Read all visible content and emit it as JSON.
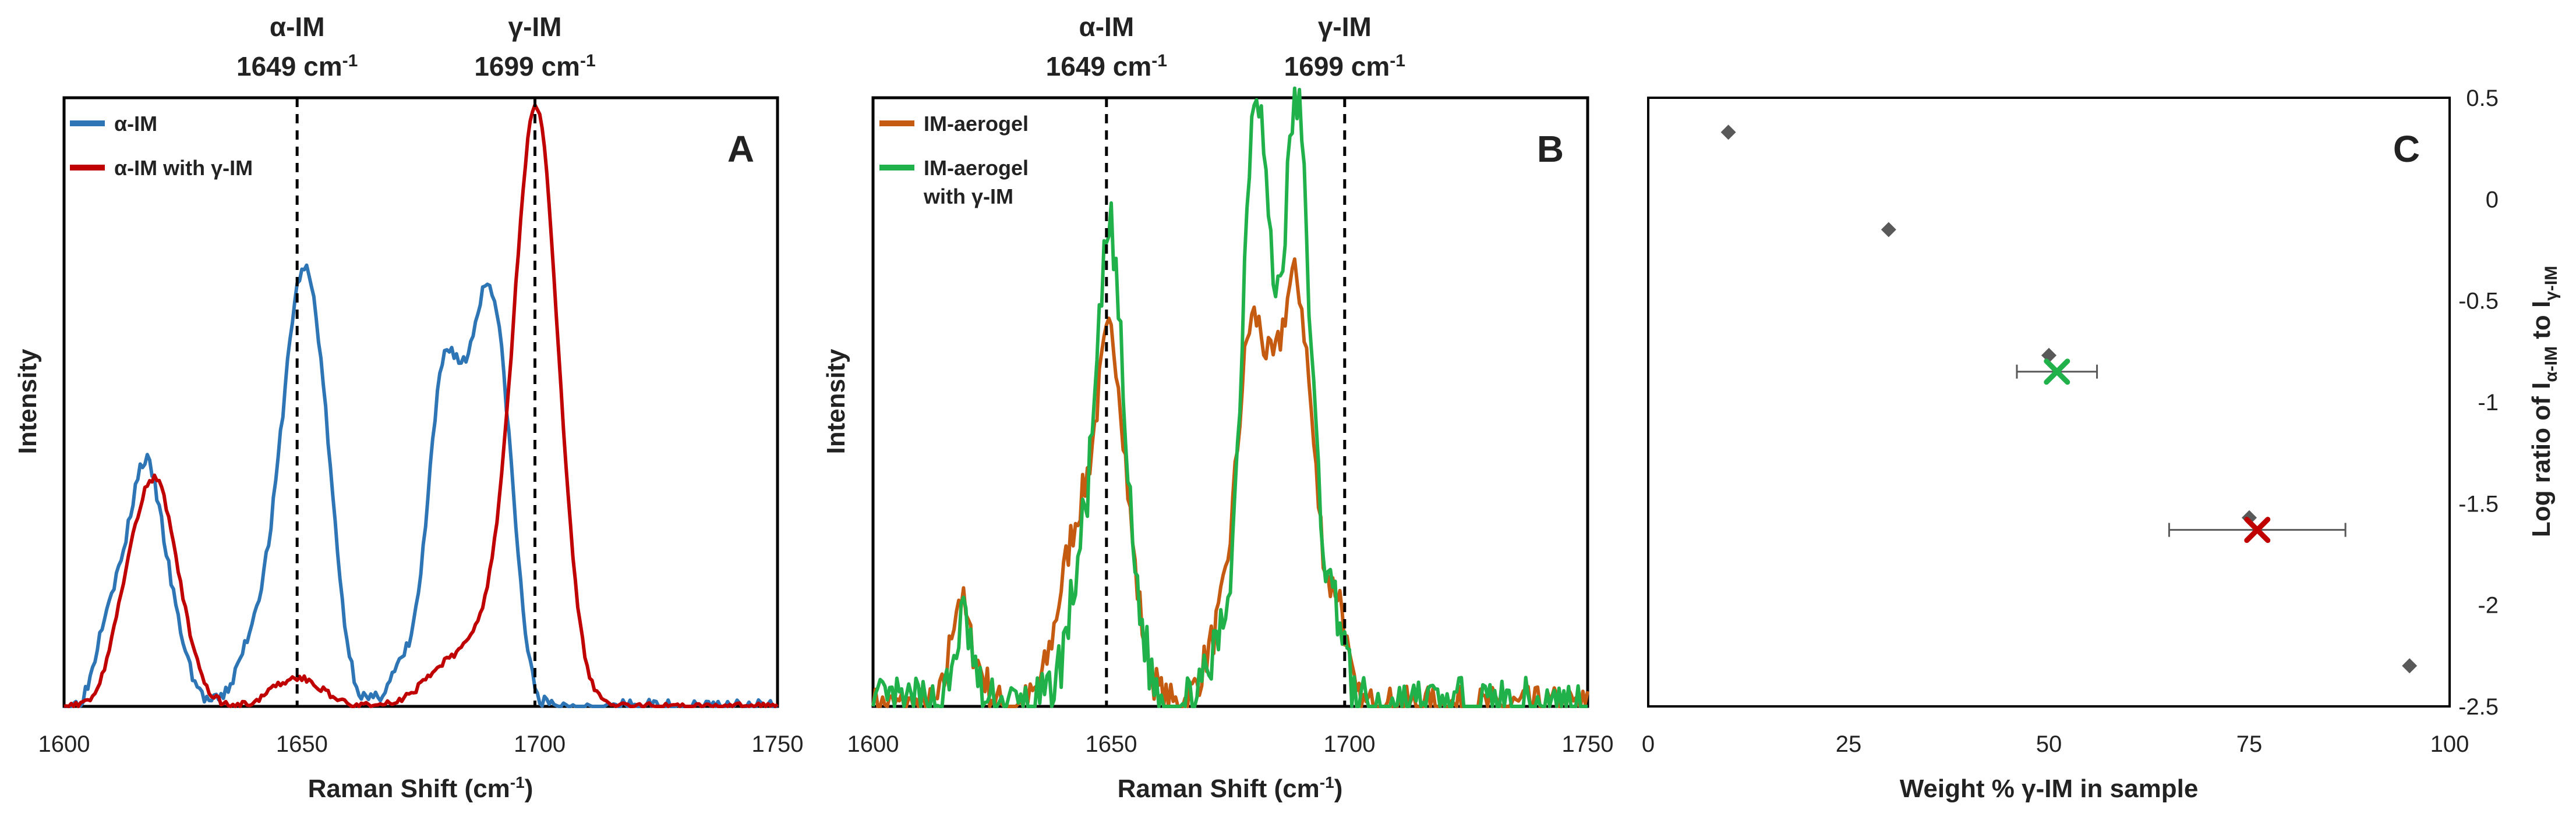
{
  "figure": {
    "description_free": true
  },
  "chart_data": [
    {
      "type": "line",
      "panel": "A",
      "xlabel": "Raman Shift (cm",
      "xlabel_sup": "-1",
      "xlabel_end": ")",
      "ylabel": "Intensity",
      "xlim": [
        1600,
        1750
      ],
      "ylim": [
        0,
        1.05
      ],
      "xticks": [
        "1600",
        "1650",
        "1700",
        "1750"
      ],
      "legend_position": "top-left",
      "annotations": [
        {
          "name": "α-IM",
          "line1": "α-IM",
          "line2": "1649 cm",
          "sup": "-1",
          "x": 1649
        },
        {
          "name": "γ-IM",
          "line1": "γ-IM",
          "line2": "1699 cm",
          "sup": "-1",
          "x": 1699
        }
      ],
      "series": [
        {
          "name": "α-IM",
          "color": "#2e75b6",
          "peaks": [
            [
              1609,
              0.12,
              2.5
            ],
            [
              1617,
              0.42,
              4
            ],
            [
              1624,
              0.06,
              3
            ],
            [
              1640,
              0.1,
              3.5
            ],
            [
              1650,
              0.72,
              4.5
            ],
            [
              1655,
              0.12,
              3
            ],
            [
              1671,
              0.06,
              3
            ],
            [
              1680,
              0.57,
              3.5
            ],
            [
              1686,
              0.2,
              3
            ],
            [
              1690,
              0.6,
              3.5
            ],
            [
              1694,
              0.1,
              2.5
            ]
          ],
          "noise": 0.012
        },
        {
          "name": "α-IM with γ-IM",
          "color": "#c00000",
          "peaks": [
            [
              1619,
              0.39,
              5
            ],
            [
              1612,
              0.05,
              3
            ],
            [
              1649,
              0.05,
              5
            ],
            [
              1680,
              0.06,
              5
            ],
            [
              1690,
              0.12,
              5
            ],
            [
              1699,
              0.95,
              4.5
            ],
            [
              1703,
              0.1,
              4
            ]
          ],
          "noise": 0.006
        }
      ]
    },
    {
      "type": "line",
      "panel": "B",
      "xlabel": "Raman Shift (cm",
      "xlabel_sup": "-1",
      "xlabel_end": ")",
      "ylabel": "Intensity",
      "xlim": [
        1600,
        1750
      ],
      "ylim": [
        0,
        1.05
      ],
      "xticks": [
        "1600",
        "1650",
        "1700",
        "1750"
      ],
      "legend_position": "top-left",
      "annotations": [
        {
          "name": "α-IM",
          "line1": "α-IM",
          "line2": "1649 cm",
          "sup": "-1",
          "x": 1649
        },
        {
          "name": "γ-IM",
          "line1": "γ-IM",
          "line2": "1699 cm",
          "sup": "-1",
          "x": 1699
        }
      ],
      "series": [
        {
          "name": "IM-aerogel",
          "color": "#c55a11",
          "peaks": [
            [
              1618,
              0.18,
              1.8
            ],
            [
              1622,
              0.06,
              2
            ],
            [
              1643,
              0.3,
              4
            ],
            [
              1650,
              0.55,
              3
            ],
            [
              1655,
              0.1,
              3
            ],
            [
              1672,
              0.1,
              3
            ],
            [
              1679,
              0.57,
              3
            ],
            [
              1684,
              0.3,
              3
            ],
            [
              1689,
              0.62,
              3
            ],
            [
              1694,
              0.15,
              3
            ],
            [
              1698,
              0.12,
              1.5
            ]
          ],
          "noise": 0.035,
          "seed": 7
        },
        {
          "name": "IM-aerogel with γ-IM",
          "name_line1": "IM-aerogel",
          "name_line2": "with γ-IM",
          "color": "#21b14b",
          "peaks": [
            [
              1619,
              0.15,
              1.8
            ],
            [
              1645,
              0.28,
              3.5
            ],
            [
              1650,
              0.7,
              2.5
            ],
            [
              1655,
              0.14,
              2.5
            ],
            [
              1674,
              0.12,
              3
            ],
            [
              1680,
              0.95,
              2.5
            ],
            [
              1684,
              0.35,
              2.5
            ],
            [
              1689,
              0.97,
              2.5
            ],
            [
              1694,
              0.2,
              2.5
            ],
            [
              1698,
              0.1,
              1.5
            ]
          ],
          "noise": 0.05,
          "seed": 13
        }
      ]
    },
    {
      "type": "scatter",
      "panel": "C",
      "xlabel": "Weight % γ-IM in sample",
      "ylabel_prefix": "Log ratio of I",
      "ylabel_sub1": "α-IM",
      "ylabel_mid": " to I",
      "ylabel_sub2": "γ-IM",
      "xlim": [
        0,
        100
      ],
      "ylim": [
        -2.5,
        0.5
      ],
      "xticks": [
        "0",
        "25",
        "50",
        "75",
        "100"
      ],
      "yticks": [
        "0.5",
        "0",
        "-0.5",
        "-1",
        "-1.5",
        "-2",
        "-2.5"
      ],
      "calibration_points": [
        {
          "x": 10,
          "y": 0.33
        },
        {
          "x": 30,
          "y": -0.15
        },
        {
          "x": 50,
          "y": -0.77
        },
        {
          "x": 75,
          "y": -1.57
        },
        {
          "x": 95,
          "y": -2.3
        }
      ],
      "samples": [
        {
          "name": "IM-aerogel with γ-IM",
          "x": 51,
          "y": -0.85,
          "xerr": [
            46,
            56
          ],
          "color": "#21b14b"
        },
        {
          "name": "α-IM with γ-IM",
          "x": 76,
          "y": -1.63,
          "xerr": [
            65,
            87
          ],
          "color": "#c00000"
        }
      ]
    }
  ]
}
